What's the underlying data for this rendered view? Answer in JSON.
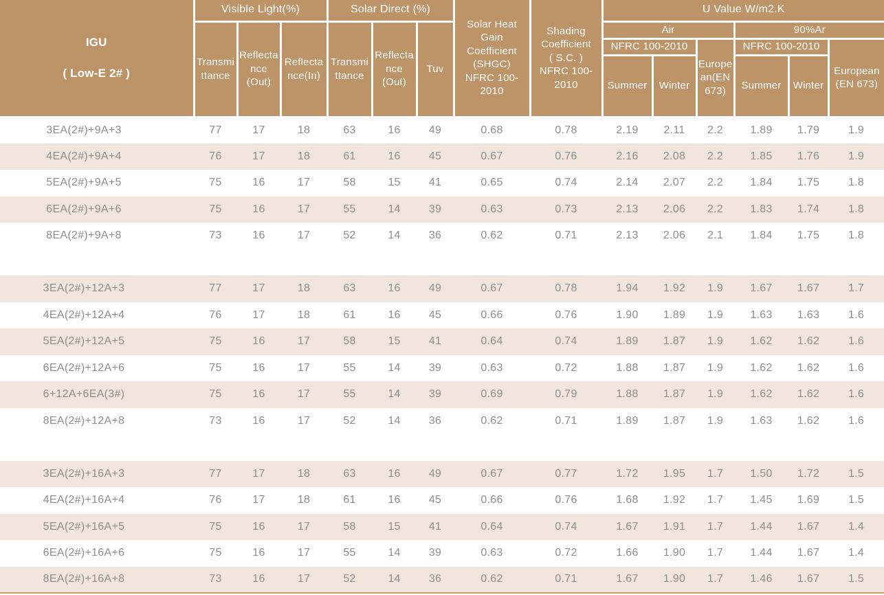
{
  "colors": {
    "header_brown": "#bd9368",
    "stripe_pink": "#f2e5dd",
    "data_text_gray": "#8e8e8e",
    "header_text": "#ffffff",
    "bottom_line_tan": "#c79e62"
  },
  "header": {
    "igu_title": "IGU",
    "igu_subtitle": "( Low-E 2# )",
    "visible_light": "Visible Light(%)",
    "solar_direct": "Solar Direct (%)",
    "u_value": "U Value W/m2.K",
    "vl_transmittance": "Transmi\nttance",
    "vl_reflectance_out": "Reflecta\nnce\n(Out)",
    "vl_reflectance_in": "Reflecta\nnce(In)",
    "sd_transmittance": "Transmi\nttance",
    "sd_reflectance_out": "Reflecta\nnce\n(Out)",
    "tuv": "Tuv",
    "shgc": "Solar Heat\nGain\nCoefficient\n(SHGC)\nNFRC 100-\n2010",
    "shading_coefficient": "Shading\nCoefficient\n( S.C. )\nNFRC 100-\n2010",
    "air": "Air",
    "argon": "90%Ar",
    "nfrc_air": "NFRC 100-2010",
    "nfrc_argon": "NFRC 100-2010",
    "european_air": "Europe\nan(EN\n673)",
    "european_argon": "European\n(EN 673)",
    "summer_air": "Summer",
    "winter_air": "Winter",
    "summer_argon": "Summer",
    "winter_argon": "Winter"
  },
  "chart_data": {
    "type": "table",
    "title": "IGU ( Low-E 2# ) optical and thermal performance",
    "columns": [
      "IGU ( Low-E 2# )",
      "Visible Light Transmittance (%)",
      "Visible Light Reflectance (Out) (%)",
      "Visible Light Reflectance (In) (%)",
      "Solar Direct Transmittance (%)",
      "Solar Direct Reflectance (Out) (%)",
      "Tuv",
      "Solar Heat Gain Coefficient (SHGC) NFRC 100-2010",
      "Shading Coefficient ( S.C. ) NFRC 100-2010",
      "U Value Air NFRC 100-2010 Summer",
      "U Value Air NFRC 100-2010 Winter",
      "U Value Air European (EN 673)",
      "U Value 90%Ar NFRC 100-2010 Summer",
      "U Value 90%Ar NFRC 100-2010 Winter",
      "U Value 90%Ar European (EN 673)"
    ],
    "rows": [
      {
        "label": "3EA(2#)+9A+3",
        "striped": false,
        "values": [
          "77",
          "17",
          "18",
          "63",
          "16",
          "49",
          "0.68",
          "0.78",
          "2.19",
          "2.11",
          "2.2",
          "1.89",
          "1.79",
          "1.9"
        ]
      },
      {
        "label": "4EA(2#)+9A+4",
        "striped": true,
        "values": [
          "76",
          "17",
          "18",
          "61",
          "16",
          "45",
          "0.67",
          "0.76",
          "2.16",
          "2.08",
          "2.2",
          "1.85",
          "1.76",
          "1.9"
        ]
      },
      {
        "label": "5EA(2#)+9A+5",
        "striped": false,
        "values": [
          "75",
          "16",
          "17",
          "58",
          "15",
          "41",
          "0.65",
          "0.74",
          "2.14",
          "2.07",
          "2.2",
          "1.84",
          "1.75",
          "1.8"
        ]
      },
      {
        "label": "6EA(2#)+9A+6",
        "striped": true,
        "values": [
          "75",
          "16",
          "17",
          "55",
          "14",
          "39",
          "0.63",
          "0.73",
          "2.13",
          "2.06",
          "2.2",
          "1.83",
          "1.74",
          "1.8"
        ]
      },
      {
        "label": "8EA(2#)+9A+8",
        "striped": false,
        "values": [
          "73",
          "16",
          "17",
          "52",
          "14",
          "36",
          "0.62",
          "0.71",
          "2.13",
          "2.06",
          "2.1",
          "1.84",
          "1.75",
          "1.8"
        ]
      },
      {
        "type": "spacer"
      },
      {
        "label": "3EA(2#)+12A+3",
        "striped": true,
        "values": [
          "77",
          "17",
          "18",
          "63",
          "16",
          "49",
          "0.67",
          "0.78",
          "1.94",
          "1.92",
          "1.9",
          "1.67",
          "1.67",
          "1.7"
        ]
      },
      {
        "label": "4EA(2#)+12A+4",
        "striped": false,
        "values": [
          "76",
          "17",
          "18",
          "61",
          "16",
          "45",
          "0.66",
          "0.76",
          "1.90",
          "1.89",
          "1.9",
          "1.63",
          "1.63",
          "1.6"
        ]
      },
      {
        "label": "5EA(2#)+12A+5",
        "striped": true,
        "values": [
          "75",
          "16",
          "17",
          "58",
          "15",
          "41",
          "0.64",
          "0.74",
          "1.89",
          "1.87",
          "1.9",
          "1.62",
          "1.62",
          "1.6"
        ]
      },
      {
        "label": "6EA(2#)+12A+6",
        "striped": false,
        "values": [
          "75",
          "16",
          "17",
          "55",
          "14",
          "39",
          "0.63",
          "0.72",
          "1.88",
          "1.87",
          "1.9",
          "1.62",
          "1.62",
          "1.6"
        ]
      },
      {
        "label": "6+12A+6EA(3#)",
        "striped": true,
        "values": [
          "75",
          "16",
          "17",
          "55",
          "14",
          "39",
          "0.69",
          "0.79",
          "1.88",
          "1.87",
          "1.9",
          "1.62",
          "1.62",
          "1.6"
        ]
      },
      {
        "label": "8EA(2#)+12A+8",
        "striped": false,
        "values": [
          "73",
          "16",
          "17",
          "52",
          "14",
          "36",
          "0.62",
          "0.71",
          "1.89",
          "1.87",
          "1.9",
          "1.63",
          "1.62",
          "1.6"
        ]
      },
      {
        "type": "spacer"
      },
      {
        "label": "3EA(2#)+16A+3",
        "striped": true,
        "values": [
          "77",
          "17",
          "18",
          "63",
          "16",
          "49",
          "0.67",
          "0.77",
          "1.72",
          "1.95",
          "1.7",
          "1.50",
          "1.72",
          "1.5"
        ]
      },
      {
        "label": "4EA(2#)+16A+4",
        "striped": false,
        "values": [
          "76",
          "17",
          "18",
          "61",
          "16",
          "45",
          "0.66",
          "0.76",
          "1.68",
          "1.92",
          "1.7",
          "1.45",
          "1.69",
          "1.5"
        ]
      },
      {
        "label": "5EA(2#)+16A+5",
        "striped": true,
        "values": [
          "75",
          "16",
          "17",
          "58",
          "15",
          "41",
          "0.64",
          "0.74",
          "1.67",
          "1.91",
          "1.7",
          "1.44",
          "1.67",
          "1.4"
        ]
      },
      {
        "label": "6EA(2#)+16A+6",
        "striped": false,
        "values": [
          "75",
          "16",
          "17",
          "55",
          "14",
          "39",
          "0.63",
          "0.72",
          "1.66",
          "1.90",
          "1.7",
          "1.44",
          "1.67",
          "1.4"
        ]
      },
      {
        "label": "8EA(2#)+16A+8",
        "striped": true,
        "values": [
          "73",
          "16",
          "17",
          "52",
          "14",
          "36",
          "0.62",
          "0.71",
          "1.67",
          "1.90",
          "1.7",
          "1.46",
          "1.67",
          "1.5"
        ]
      }
    ]
  }
}
